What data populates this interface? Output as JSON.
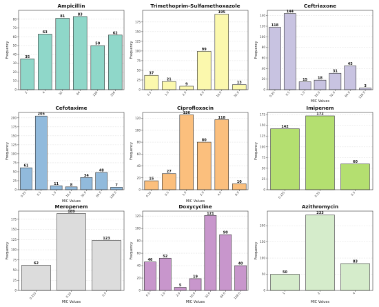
{
  "chart_data": [
    {
      "type": "bar",
      "title": "Ampicillin",
      "xlabel": "",
      "ylabel": "Frequency",
      "categories": [
        "2",
        "4",
        "32",
        "64",
        "128",
        "256"
      ],
      "values": [
        35,
        63,
        81,
        83,
        50,
        62
      ],
      "ylim": [
        0,
        90
      ],
      "yticks": [
        0,
        10,
        20,
        30,
        40,
        50,
        60,
        70,
        80
      ],
      "color": "#8fd7c9",
      "grid": true
    },
    {
      "type": "bar",
      "title": "Trimethoprim-Sulfamethoxazole",
      "xlabel": "",
      "ylabel": "Frequency",
      "categories": [
        "0.5",
        "1.0",
        "2.0",
        "8.0",
        "16.0",
        "32.0"
      ],
      "values": [
        37,
        21,
        9,
        99,
        195,
        13
      ],
      "ylim": [
        0,
        205
      ],
      "yticks": [
        0,
        25,
        50,
        75,
        100,
        125,
        150,
        175
      ],
      "color": "#fbf8ad",
      "grid": true
    },
    {
      "type": "bar",
      "title": "Ceftriaxone",
      "xlabel": "MIC Values",
      "ylabel": "Frequency",
      "categories": [
        "0.25",
        "0.5",
        "1.0",
        "16.0",
        "32.0",
        "64.0",
        "128.0"
      ],
      "values": [
        118,
        144,
        15,
        18,
        31,
        45,
        3
      ],
      "ylim": [
        0,
        150
      ],
      "yticks": [
        0,
        20,
        40,
        60,
        80,
        100,
        120,
        140
      ],
      "color": "#c8c3e1",
      "grid": true
    },
    {
      "type": "bar",
      "title": "Cefotaxime",
      "xlabel": "MIC Values",
      "ylabel": "Frequency",
      "categories": [
        "0.25",
        "0.5",
        "1.0",
        "16.0",
        "32.0",
        "64.0",
        "128.0"
      ],
      "values": [
        61,
        205,
        11,
        8,
        34,
        48,
        7
      ],
      "ylim": [
        0,
        215
      ],
      "yticks": [
        0,
        25,
        50,
        75,
        100,
        125,
        150,
        175,
        200
      ],
      "color": "#91badc",
      "grid": true
    },
    {
      "type": "bar",
      "title": "Ciprofloxacin",
      "xlabel": "MIC Values",
      "ylabel": "Frequency",
      "categories": [
        "0.25",
        "0.5",
        "1.0",
        "2.0",
        "4.0",
        "8.0"
      ],
      "values": [
        15,
        27,
        126,
        80,
        118,
        10
      ],
      "ylim": [
        0,
        130
      ],
      "yticks": [
        0,
        20,
        40,
        60,
        80,
        100,
        120
      ],
      "color": "#fbbf7d",
      "grid": true
    },
    {
      "type": "bar",
      "title": "Imipenem",
      "xlabel": "",
      "ylabel": "Frequency",
      "categories": [
        "0.125",
        "0.25",
        "0.5"
      ],
      "values": [
        142,
        172,
        60
      ],
      "ylim": [
        0,
        180
      ],
      "yticks": [
        0,
        25,
        50,
        75,
        100,
        125,
        150,
        175
      ],
      "color": "#b4df70",
      "grid": true
    },
    {
      "type": "bar",
      "title": "Meropenem",
      "xlabel": "MIC Values",
      "ylabel": "Frequency",
      "categories": [
        "0.125",
        "0.25",
        "0.5"
      ],
      "values": [
        62,
        189,
        123
      ],
      "ylim": [
        0,
        195
      ],
      "yticks": [
        0,
        25,
        50,
        75,
        100,
        125,
        150,
        175
      ],
      "color": "#dcdcdc",
      "grid": true
    },
    {
      "type": "bar",
      "title": "Doxycycline",
      "xlabel": "MIC Values",
      "ylabel": "Frequency",
      "categories": [
        "0.5",
        "1.0",
        "2.0",
        "16.0",
        "32.0",
        "64.0",
        "128.0"
      ],
      "values": [
        46,
        52,
        5,
        19,
        121,
        90,
        40
      ],
      "ylim": [
        0,
        128
      ],
      "yticks": [
        0,
        20,
        40,
        60,
        80,
        100,
        120
      ],
      "color": "#c896cc",
      "grid": true
    },
    {
      "type": "bar",
      "title": "Azithromycin",
      "xlabel": "MIC Values",
      "ylabel": "Frequency",
      "categories": [
        "1",
        "2",
        "4"
      ],
      "values": [
        50,
        233,
        83
      ],
      "ylim": [
        0,
        245
      ],
      "yticks": [
        0,
        50,
        100,
        150,
        200
      ],
      "color": "#d5eccb",
      "grid": true
    }
  ]
}
